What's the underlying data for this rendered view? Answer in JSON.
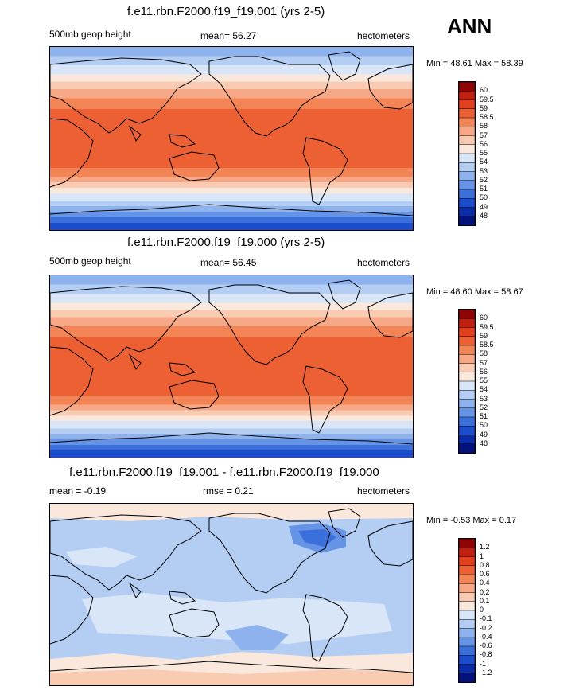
{
  "season": "ANN",
  "panels": [
    {
      "title": "f.e11.rbn.F2000.f19_f19.001 (yrs 2-5)",
      "field_label": "500mb geop height",
      "stat_text": "mean=  56.27",
      "units": "hectometers",
      "minmax": "Min =  48.61 Max =  58.39"
    },
    {
      "title": "f.e11.rbn.F2000.f19_f19.000 (yrs 2-5)",
      "field_label": "500mb geop height",
      "stat_text": "mean=  56.45",
      "units": "hectometers",
      "minmax": "Min =  48.60 Max =  58.67"
    },
    {
      "title": "f.e11.rbn.F2000.f19_f19.001 - f.e11.rbn.F2000.f19_f19.000",
      "stat_text": "mean =  -0.19",
      "rmse_text": "rmse =  0.21",
      "units": "hectometers",
      "minmax": "Min =  -0.53 Max =  0.17"
    }
  ],
  "chart_data": [
    {
      "type": "heatmap",
      "title": "f.e11.rbn.F2000.f19_f19.001 (yrs 2-5)",
      "variable": "500mb geop height",
      "units": "hectometers",
      "mean": 56.27,
      "min": 48.61,
      "max": 58.39,
      "colorbar_levels": [
        "60",
        "59.5",
        "59",
        "58.5",
        "58",
        "57",
        "56",
        "55",
        "54",
        "53",
        "52",
        "51",
        "50",
        "49",
        "48"
      ],
      "colors": [
        "#8e0505",
        "#c2200f",
        "#e3401d",
        "#ec6034",
        "#f28456",
        "#f7a987",
        "#f9cbb3",
        "#fbe8dc",
        "#d9e6f8",
        "#b4cdf3",
        "#8eb2ee",
        "#6593e6",
        "#3b6fdc",
        "#1a4ccc",
        "#0a2ca8",
        "#03127a"
      ]
    },
    {
      "type": "heatmap",
      "title": "f.e11.rbn.F2000.f19_f19.000 (yrs 2-5)",
      "variable": "500mb geop height",
      "units": "hectometers",
      "mean": 56.45,
      "min": 48.6,
      "max": 58.67,
      "colorbar_levels": [
        "60",
        "59.5",
        "59",
        "58.5",
        "58",
        "57",
        "56",
        "55",
        "54",
        "53",
        "52",
        "51",
        "50",
        "49",
        "48"
      ],
      "colors": [
        "#8e0505",
        "#c2200f",
        "#e3401d",
        "#ec6034",
        "#f28456",
        "#f7a987",
        "#f9cbb3",
        "#fbe8dc",
        "#d9e6f8",
        "#b4cdf3",
        "#8eb2ee",
        "#6593e6",
        "#3b6fdc",
        "#1a4ccc",
        "#0a2ca8",
        "#03127a"
      ]
    },
    {
      "type": "heatmap",
      "title": "f.e11.rbn.F2000.f19_f19.001 - f.e11.rbn.F2000.f19_f19.000",
      "variable": "difference",
      "units": "hectometers",
      "mean": -0.19,
      "rmse": 0.21,
      "min": -0.53,
      "max": 0.17,
      "colorbar_levels": [
        "1.2",
        "1",
        "0.8",
        "0.6",
        "0.4",
        "0.2",
        "0.1",
        "0",
        "-0.1",
        "-0.2",
        "-0.4",
        "-0.6",
        "-0.8",
        "-1",
        "-1.2"
      ],
      "colors": [
        "#8e0505",
        "#c2200f",
        "#e3401d",
        "#ec6034",
        "#f28456",
        "#f7a987",
        "#f9cbb3",
        "#fbe8dc",
        "#d9e6f8",
        "#b4cdf3",
        "#8eb2ee",
        "#6593e6",
        "#3b6fdc",
        "#1a4ccc",
        "#0a2ca8",
        "#03127a"
      ]
    }
  ]
}
